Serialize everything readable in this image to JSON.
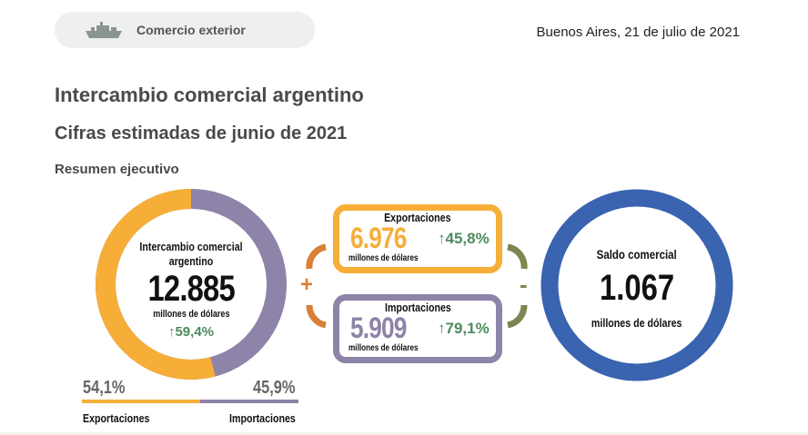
{
  "header": {
    "section": "Comercio exterior",
    "section_icon": "ship-icon",
    "date": "Buenos Aires, 21 de julio de 2021"
  },
  "title": "Intercambio comercial argentino",
  "subtitle": "Cifras estimadas de junio de 2021",
  "section_title": "Resumen ejecutivo",
  "intercambio": {
    "label": "Intercambio comercial argentino",
    "value": "12.885",
    "unit": "millones de dólares",
    "change": "59,4%",
    "export_share": 54.1,
    "import_share": 45.9,
    "export_share_label": "54,1%",
    "import_share_label": "45,9%",
    "export_label": "Exportaciones",
    "import_label": "Importaciones"
  },
  "exportaciones": {
    "label": "Exportaciones",
    "value": "6.976",
    "unit": "millones de dólares",
    "change": "45,8%"
  },
  "importaciones": {
    "label": "Importaciones",
    "value": "5.909",
    "unit": "millones de dólares",
    "change": "79,1%"
  },
  "operators": {
    "plus": "+",
    "minus": "-"
  },
  "saldo": {
    "label": "Saldo comercial",
    "value": "1.067",
    "unit": "millones de dólares"
  },
  "colors": {
    "export": "#f6ae38",
    "import": "#8e83a8",
    "saldo": "#3a63b0",
    "positive": "#4d8a5e",
    "plus": "#d97f36",
    "minus": "#7f8450"
  }
}
